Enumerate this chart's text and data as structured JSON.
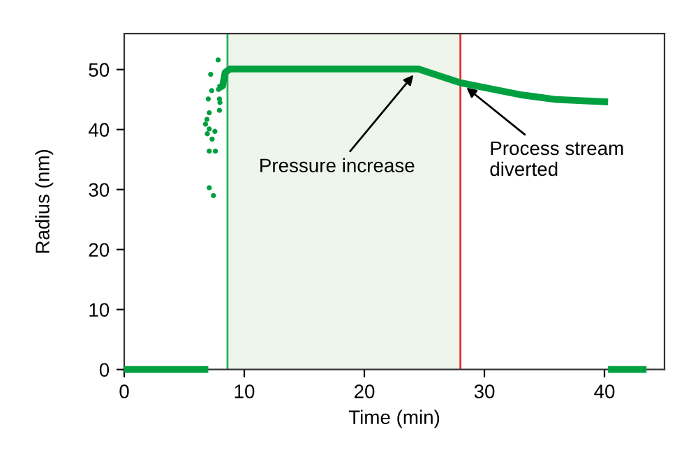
{
  "chart_data": {
    "type": "line",
    "xlabel": "Time (min)",
    "ylabel": "Radius (nm)",
    "xlim": [
      0,
      45
    ],
    "xticks": [
      0,
      10,
      20,
      30,
      40
    ],
    "ylim": [
      0,
      56
    ],
    "yticks": [
      0,
      10,
      20,
      30,
      40,
      50
    ],
    "grid": false,
    "legend": false,
    "series": [
      {
        "type": "scatter",
        "color": "#00a040",
        "x": [
          7.82,
          7.2,
          7.28,
          7.85,
          7.0,
          7.93,
          7.97,
          7.93,
          7.08,
          6.89,
          6.77,
          7.08,
          7.55,
          6.92,
          7.32,
          7.59,
          7.08,
          7.08,
          7.43
        ],
        "values": [
          51.6,
          49.2,
          46.5,
          46.7,
          45.1,
          45.1,
          44.5,
          43.2,
          42.8,
          41.7,
          40.9,
          40.1,
          39.7,
          39.3,
          38.4,
          36.4,
          36.4,
          30.3,
          29.0
        ]
      },
      {
        "color": "#00a040",
        "x": [
          7.85,
          8.2,
          8.4,
          8.8,
          24.5,
          26,
          28,
          30,
          33,
          36,
          40.3
        ],
        "values": [
          46.9,
          47.3,
          49.5,
          50.1,
          50.1,
          49.1,
          47.8,
          47,
          45.8,
          45,
          44.6
        ]
      },
      {
        "color": "#00a040",
        "x": [
          0,
          7
        ],
        "values": [
          0,
          0
        ]
      },
      {
        "color": "#00a040",
        "x": [
          40.3,
          43.5
        ],
        "values": [
          0,
          0
        ]
      }
    ],
    "bands": [
      {
        "axis": "x",
        "from": 8.6,
        "to": 28,
        "color": "#eef5ea"
      }
    ],
    "ref_lines": [
      {
        "axis": "x",
        "value": 8.6,
        "color": "#30b060"
      },
      {
        "axis": "x",
        "value": 28,
        "color": "#e83030"
      }
    ],
    "annotations": [
      {
        "text": "Pressure increase",
        "x": 24.5,
        "y": 50.1
      },
      {
        "text": "Process stream\ndiverted",
        "x": 28,
        "y": 47.8
      }
    ]
  }
}
